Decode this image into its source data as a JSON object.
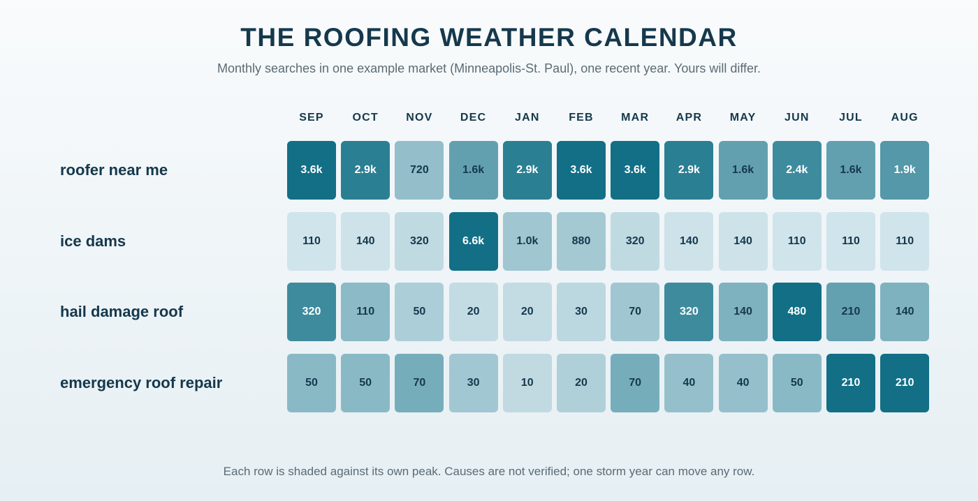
{
  "header": {
    "title": "THE ROOFING WEATHER CALENDAR",
    "subtitle": "Monthly searches in one example market (Minneapolis-St. Paul), one recent year. Yours will differ."
  },
  "footnote": "Each row is shaded against its own peak. Causes are not verified; one storm year can move any row.",
  "colors": {
    "cell_low": "#e2eff4",
    "cell_high": "#126f86",
    "text_dark": "#15384c",
    "text_light": "#ffffff"
  },
  "chart_data": {
    "type": "heatmap",
    "title": "THE ROOFING WEATHER CALENDAR",
    "subtitle": "Monthly searches in one example market (Minneapolis-St. Paul), one recent year. Yours will differ.",
    "columns": [
      "SEP",
      "OCT",
      "NOV",
      "DEC",
      "JAN",
      "FEB",
      "MAR",
      "APR",
      "MAY",
      "JUN",
      "JUL",
      "AUG"
    ],
    "rows": [
      {
        "name": "roofer near me",
        "values": [
          3600,
          2900,
          720,
          1600,
          2900,
          3600,
          3600,
          2900,
          1600,
          2400,
          1600,
          1900
        ],
        "labels": [
          "3.6k",
          "2.9k",
          "720",
          "1.6k",
          "2.9k",
          "3.6k",
          "3.6k",
          "2.9k",
          "1.6k",
          "2.4k",
          "1.6k",
          "1.9k"
        ]
      },
      {
        "name": "ice dams",
        "values": [
          110,
          140,
          320,
          6600,
          1000,
          880,
          320,
          140,
          140,
          110,
          110,
          110
        ],
        "labels": [
          "110",
          "140",
          "320",
          "6.6k",
          "1.0k",
          "880",
          "320",
          "140",
          "140",
          "110",
          "110",
          "110"
        ]
      },
      {
        "name": "hail damage roof",
        "values": [
          320,
          110,
          50,
          20,
          20,
          30,
          70,
          320,
          140,
          480,
          210,
          140
        ],
        "labels": [
          "320",
          "110",
          "50",
          "20",
          "20",
          "30",
          "70",
          "320",
          "140",
          "480",
          "210",
          "140"
        ]
      },
      {
        "name": "emergency roof repair",
        "values": [
          50,
          50,
          70,
          30,
          10,
          20,
          70,
          40,
          40,
          50,
          210,
          210
        ],
        "labels": [
          "50",
          "50",
          "70",
          "30",
          "10",
          "20",
          "70",
          "40",
          "40",
          "50",
          "210",
          "210"
        ]
      }
    ],
    "shading": "per-row relative to row peak"
  }
}
